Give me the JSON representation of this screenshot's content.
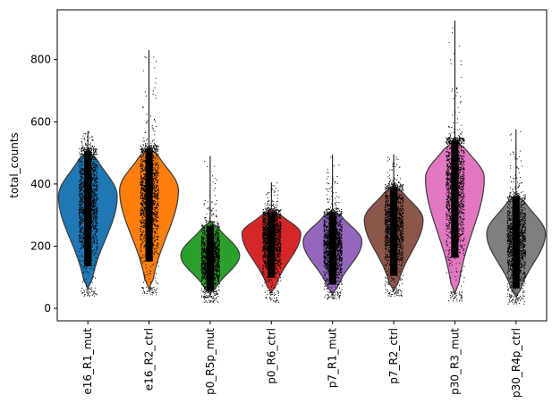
{
  "chart_data": {
    "type": "violin",
    "title": "",
    "xlabel": "",
    "ylabel": "total_counts",
    "ylim": [
      -40,
      960
    ],
    "yticks": [
      0,
      200,
      400,
      600,
      800
    ],
    "grid": false,
    "jitter_points": true,
    "categories": [
      "e16_R1_mut",
      "e16_R2_ctrl",
      "p0_R5p_mut",
      "p0_R6_ctrl",
      "p7_R1_mut",
      "p7_R2_ctrl",
      "p30_R3_mut",
      "p30_R4p_ctrl"
    ],
    "colors": [
      "#1f77b4",
      "#ff7f0e",
      "#2ca02c",
      "#d62728",
      "#9467bd",
      "#8c564b",
      "#e377c2",
      "#7f7f7f"
    ],
    "series": [
      {
        "category": "e16_R1_mut",
        "violin_min": 60,
        "violin_max": 515,
        "peak": 360,
        "median": 340,
        "points_min": 40,
        "points_max": 570
      },
      {
        "category": "e16_R2_ctrl",
        "violin_min": 60,
        "violin_max": 525,
        "peak": 380,
        "median": 360,
        "points_min": 45,
        "points_max": 830
      },
      {
        "category": "p0_R5p_mut",
        "violin_min": 45,
        "violin_max": 280,
        "peak": 170,
        "median": 160,
        "points_min": 20,
        "points_max": 490
      },
      {
        "category": "p0_R6_ctrl",
        "violin_min": 50,
        "violin_max": 320,
        "peak": 240,
        "median": 220,
        "points_min": 20,
        "points_max": 405
      },
      {
        "category": "p7_R1_mut",
        "violin_min": 45,
        "violin_max": 320,
        "peak": 215,
        "median": 200,
        "points_min": 30,
        "points_max": 495
      },
      {
        "category": "p7_R2_ctrl",
        "violin_min": 55,
        "violin_max": 400,
        "peak": 285,
        "median": 260,
        "points_min": 40,
        "points_max": 495
      },
      {
        "category": "p30_R3_mut",
        "violin_min": 45,
        "violin_max": 550,
        "peak": 420,
        "median": 390,
        "points_min": 25,
        "points_max": 925
      },
      {
        "category": "p30_R4p_ctrl",
        "violin_min": 35,
        "violin_max": 370,
        "peak": 240,
        "median": 215,
        "points_min": 15,
        "points_max": 575
      }
    ]
  }
}
